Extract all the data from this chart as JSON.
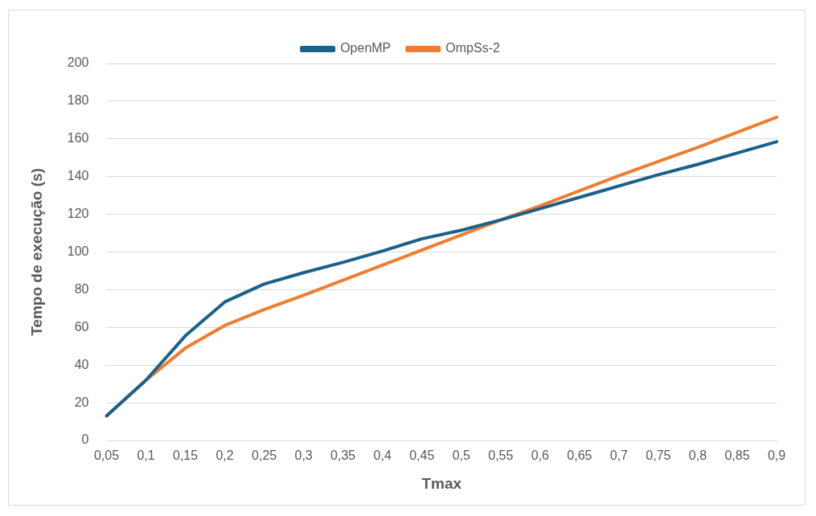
{
  "chart_data": {
    "type": "line",
    "xlabel": "Tmax",
    "ylabel": "Tempo de execução (s)",
    "categories": [
      "0,05",
      "0,1",
      "0,15",
      "0,2",
      "0,25",
      "0,3",
      "0,35",
      "0,4",
      "0,45",
      "0,5",
      "0,55",
      "0,6",
      "0,65",
      "0,7",
      "0,75",
      "0,8",
      "0,85",
      "0,9"
    ],
    "series": [
      {
        "name": "OpenMP",
        "color": "#1b6189",
        "values": [
          13,
          32,
          55.5,
          73.5,
          83,
          89,
          94.5,
          100.5,
          107,
          111.5,
          117,
          123,
          129,
          135,
          141,
          146.5,
          152.5,
          158.5
        ]
      },
      {
        "name": "OmpSs-2",
        "color": "#ed7d31",
        "values": [
          13,
          32,
          49,
          61,
          69.5,
          77,
          85,
          93,
          101,
          109,
          117,
          124.5,
          132.5,
          140.5,
          148,
          155.5,
          163.5,
          171.5
        ]
      }
    ],
    "ylim": [
      0,
      200
    ],
    "yticks": [
      0,
      20,
      40,
      60,
      80,
      100,
      120,
      140,
      160,
      180,
      200
    ],
    "grid": "y",
    "legend": "top",
    "marker": "none",
    "line_style": "solid"
  }
}
